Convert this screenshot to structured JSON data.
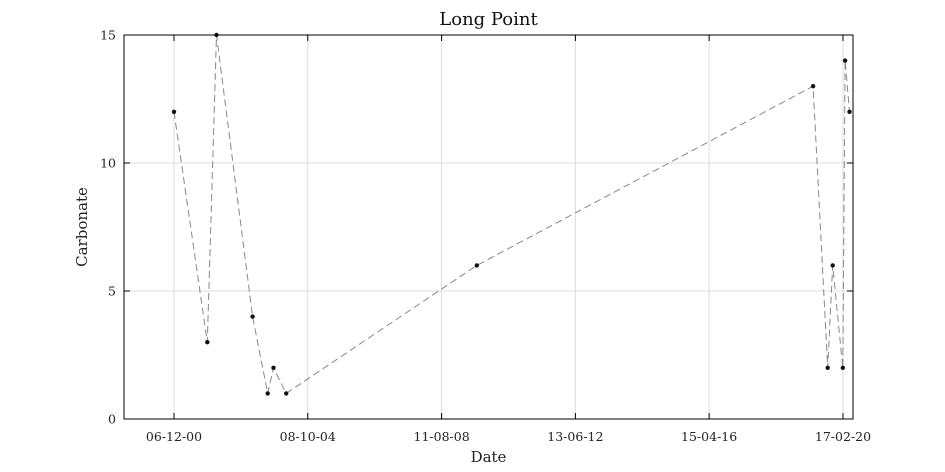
{
  "chart_data": {
    "type": "line",
    "title": "Long Point",
    "xlabel": "Date",
    "ylabel": "Carbonate",
    "x_ticks": [
      "06-12-00",
      "08-10-04",
      "11-08-08",
      "13-06-12",
      "15-04-16",
      "17-02-20"
    ],
    "xlim": [
      "1999-07-01",
      "2020-06-01"
    ],
    "ylim": [
      0,
      15
    ],
    "y_ticks": [
      0,
      5,
      10,
      15
    ],
    "grid": true,
    "series": [
      {
        "x": [
          "2000-12-06",
          "2001-11-20",
          "2002-02-25",
          "2003-03-10",
          "2003-08-15",
          "2003-10-15",
          "2004-02-25",
          "2009-08-15",
          "2019-04-10",
          "2019-09-10",
          "2019-11-01",
          "2020-02-15",
          "2020-03-10",
          "2020-04-25"
        ],
        "y": [
          12,
          3,
          15,
          4,
          1,
          2,
          1,
          6,
          13,
          2,
          6,
          2,
          14,
          12
        ]
      }
    ]
  }
}
